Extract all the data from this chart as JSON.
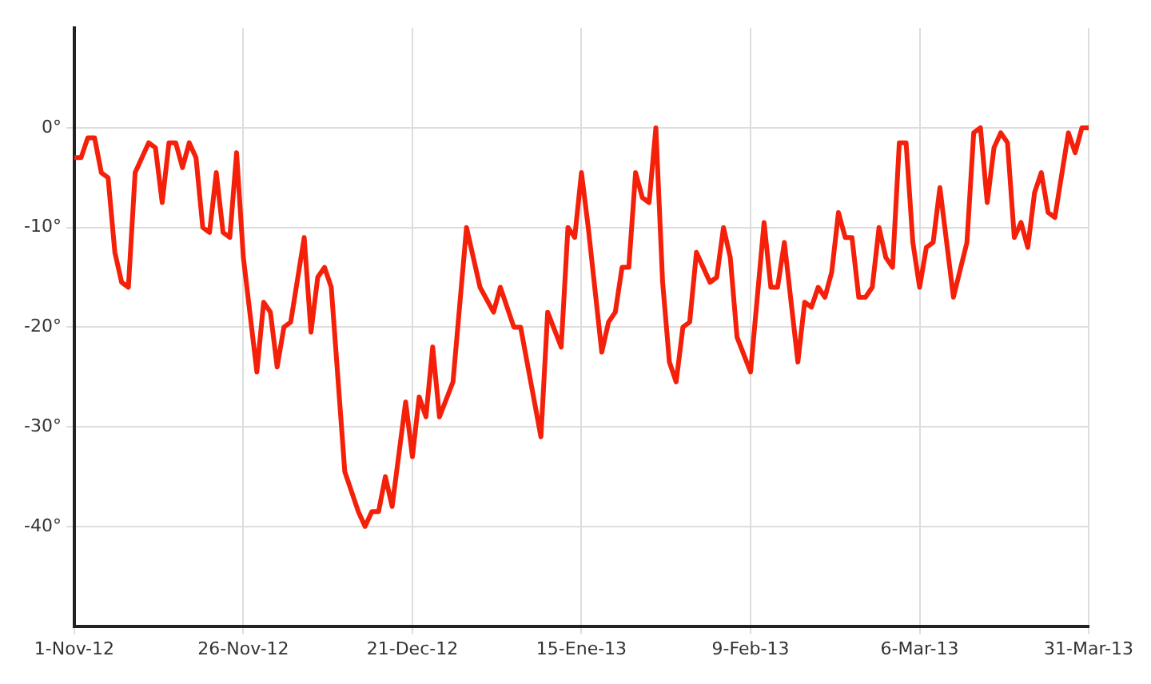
{
  "chart_data": {
    "type": "line",
    "x": [
      "2012-11-01",
      "2012-11-02",
      "2012-11-03",
      "2012-11-04",
      "2012-11-05",
      "2012-11-06",
      "2012-11-07",
      "2012-11-08",
      "2012-11-09",
      "2012-11-10",
      "2012-11-12",
      "2012-11-13",
      "2012-11-14",
      "2012-11-15",
      "2012-11-16",
      "2012-11-17",
      "2012-11-18",
      "2012-11-19",
      "2012-11-20",
      "2012-11-21",
      "2012-11-22",
      "2012-11-23",
      "2012-11-24",
      "2012-11-25",
      "2012-11-26",
      "2012-11-28",
      "2012-11-29",
      "2012-11-30",
      "2012-12-01",
      "2012-12-02",
      "2012-12-03",
      "2012-12-05",
      "2012-12-06",
      "2012-12-07",
      "2012-12-08",
      "2012-12-09",
      "2012-12-11",
      "2012-12-13",
      "2012-12-14",
      "2012-12-15",
      "2012-12-16",
      "2012-12-17",
      "2012-12-18",
      "2012-12-20",
      "2012-12-21",
      "2012-12-22",
      "2012-12-23",
      "2012-12-24",
      "2012-12-25",
      "2012-12-27",
      "2012-12-29",
      "2012-12-31",
      "2013-01-02",
      "2013-01-03",
      "2013-01-05",
      "2013-01-06",
      "2013-01-09",
      "2013-01-10",
      "2013-01-12",
      "2013-01-13",
      "2013-01-14",
      "2013-01-15",
      "2013-01-16",
      "2013-01-18",
      "2013-01-19",
      "2013-01-20",
      "2013-01-21",
      "2013-01-22",
      "2013-01-23",
      "2013-01-24",
      "2013-01-25",
      "2013-01-26",
      "2013-01-27",
      "2013-01-28",
      "2013-01-29",
      "2013-01-30",
      "2013-01-31",
      "2013-02-01",
      "2013-02-03",
      "2013-02-04",
      "2013-02-05",
      "2013-02-06",
      "2013-02-07",
      "2013-02-09",
      "2013-02-11",
      "2013-02-12",
      "2013-02-13",
      "2013-02-14",
      "2013-02-16",
      "2013-02-17",
      "2013-02-18",
      "2013-02-19",
      "2013-02-20",
      "2013-02-21",
      "2013-02-22",
      "2013-02-23",
      "2013-02-24",
      "2013-02-25",
      "2013-02-26",
      "2013-02-27",
      "2013-02-28",
      "2013-03-01",
      "2013-03-02",
      "2013-03-03",
      "2013-03-04",
      "2013-03-05",
      "2013-03-06",
      "2013-03-07",
      "2013-03-08",
      "2013-03-09",
      "2013-03-11",
      "2013-03-13",
      "2013-03-14",
      "2013-03-15",
      "2013-03-16",
      "2013-03-17",
      "2013-03-18",
      "2013-03-19",
      "2013-03-20",
      "2013-03-21",
      "2013-03-22",
      "2013-03-23",
      "2013-03-24",
      "2013-03-25",
      "2013-03-26",
      "2013-03-28",
      "2013-03-29",
      "2013-03-30",
      "2013-03-31"
    ],
    "series": [
      {
        "color": "#f5200a",
        "values": [
          -3,
          -3,
          -1,
          -1,
          -4.5,
          -5,
          -12.5,
          -15.5,
          -16,
          -4.5,
          -1.5,
          -2,
          -7.5,
          -1.5,
          -1.5,
          -4,
          -1.5,
          -3,
          -10,
          -10.5,
          -4.5,
          -10.5,
          -11,
          -2.5,
          -13,
          -24.5,
          -17.5,
          -18.5,
          -24,
          -20,
          -19.5,
          -11,
          -20.5,
          -15,
          -14,
          -16,
          -34.5,
          -38.5,
          -40,
          -38.5,
          -38.5,
          -35,
          -38,
          -27.5,
          -33,
          -27,
          -29,
          -22,
          -29,
          -25.5,
          -10,
          -16,
          -18.5,
          -16,
          -20,
          -20,
          -31,
          -18.5,
          -22,
          -10,
          -11,
          -4.5,
          -10,
          -22.5,
          -19.5,
          -18.5,
          -14,
          -14,
          -4.5,
          -7,
          -7.5,
          0,
          -15.5,
          -23.5,
          -25.5,
          -20,
          -19.5,
          -12.5,
          -15.5,
          -15,
          -10,
          -13,
          -21,
          -24.5,
          -9.5,
          -16,
          -16,
          -11.5,
          -23.5,
          -17.5,
          -18,
          -16,
          -17,
          -14.5,
          -8.5,
          -11,
          -11,
          -17,
          -17,
          -16,
          -10,
          -13,
          -14,
          -1.5,
          -1.5,
          -11.5,
          -16,
          -12,
          -11.5,
          -6,
          -17,
          -11.5,
          -0.5,
          0,
          -7.5,
          -2,
          -0.5,
          -1.5,
          -11,
          -9.5,
          -12,
          -6.5,
          -4.5,
          -8.5,
          -9,
          -0.5,
          -2.5,
          0,
          0
        ]
      }
    ],
    "xlim": [
      "2012-11-01",
      "2013-03-31"
    ],
    "xticks": [
      {
        "value": "2012-11-01",
        "label": "1-Nov-12"
      },
      {
        "value": "2012-11-26",
        "label": "26-Nov-12"
      },
      {
        "value": "2012-12-21",
        "label": "21-Dec-12"
      },
      {
        "value": "2013-01-15",
        "label": "15-Ene-13"
      },
      {
        "value": "2013-02-09",
        "label": "9-Feb-13"
      },
      {
        "value": "2013-03-06",
        "label": "6-Mar-13"
      },
      {
        "value": "2013-03-31",
        "label": "31-Mar-13"
      }
    ],
    "ylim": [
      -50,
      10
    ],
    "yticks": [
      {
        "value": -40,
        "label": "-40°"
      },
      {
        "value": -30,
        "label": "-30°"
      },
      {
        "value": -20,
        "label": "-20°"
      },
      {
        "value": -10,
        "label": "-10°"
      },
      {
        "value": 0,
        "label": "0°"
      }
    ],
    "grid": true,
    "marker": "none",
    "line_style": "solid"
  }
}
